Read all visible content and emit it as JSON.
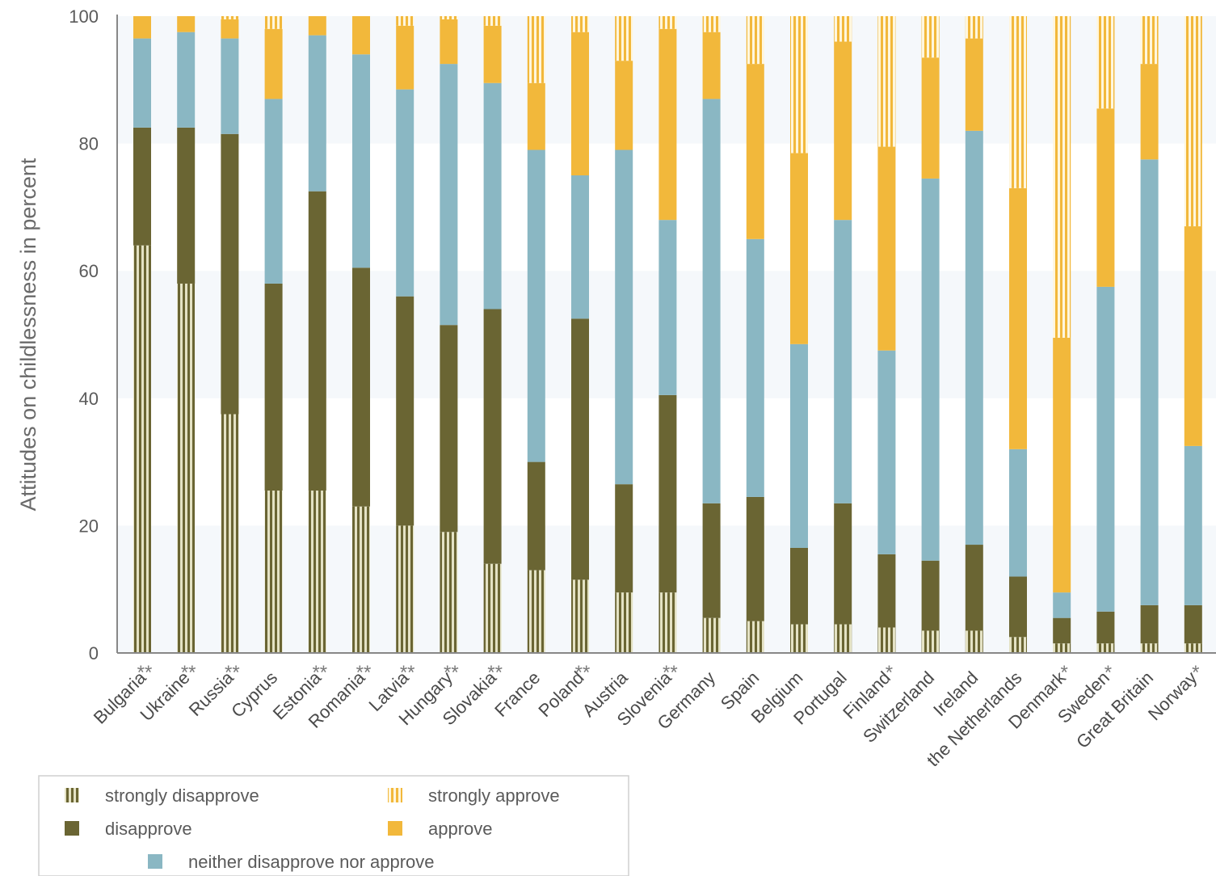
{
  "chart_data": {
    "type": "bar",
    "stacked": true,
    "ylabel": "Attitudes on childlessness in percent",
    "xlabel": "",
    "ylim": [
      0,
      100
    ],
    "yticks": [
      0,
      20,
      40,
      60,
      80,
      100
    ],
    "categories": [
      "Bulgaria",
      "Ukraine",
      "Russia",
      "Cyprus",
      "Estonia",
      "Romania",
      "Latvia",
      "Hungary",
      "Slovakia",
      "France",
      "Poland",
      "Austria",
      "Slovenia",
      "Germany",
      "Spain",
      "Belgium",
      "Portugal",
      "Finland",
      "Switzerland",
      "Ireland",
      "the Netherlands",
      "Denmark",
      "Sweden",
      "Great Britain",
      "Norway"
    ],
    "significance": [
      "**",
      "**",
      "**",
      "",
      "**",
      "**",
      "**",
      "**",
      "**",
      "",
      "**",
      "",
      "**",
      "",
      "",
      "",
      "",
      "*",
      "",
      "",
      "",
      "*",
      "*",
      "",
      "*"
    ],
    "series": [
      {
        "name": "strongly disapprove",
        "color": "#b5b48a",
        "pattern": "stripes",
        "values": [
          64,
          58,
          37.5,
          25.5,
          25.5,
          23,
          20,
          19,
          14,
          13,
          11.5,
          9.5,
          9.5,
          5.5,
          5,
          4.5,
          4.5,
          4,
          3.5,
          3.5,
          2.5,
          1.5,
          1.5,
          1.5,
          1.5
        ]
      },
      {
        "name": "disapprove",
        "color": "#6a6533",
        "pattern": "solid",
        "values": [
          18.5,
          24.5,
          44,
          32.5,
          47,
          37.5,
          36,
          32.5,
          40,
          17,
          41,
          17,
          31,
          18,
          19.5,
          12,
          19,
          11.5,
          11,
          13.5,
          9.5,
          4,
          5,
          6,
          6
        ]
      },
      {
        "name": "neither disapprove nor approve",
        "color": "#8ab7c3",
        "pattern": "solid",
        "values": [
          14,
          15,
          15,
          29,
          24.5,
          33.5,
          32.5,
          41,
          35.5,
          49,
          22.5,
          52.5,
          27.5,
          63.5,
          40.5,
          32,
          44.5,
          32,
          60,
          65,
          20,
          4,
          51,
          70,
          25
        ]
      },
      {
        "name": "approve",
        "color": "#f2b83b",
        "pattern": "solid",
        "values": [
          3.5,
          2.5,
          3,
          11,
          3,
          6,
          10,
          7,
          9,
          10.5,
          22.5,
          14,
          30,
          10.5,
          27.5,
          30,
          28,
          32,
          19,
          14.5,
          41,
          40,
          28,
          15,
          34.5
        ]
      },
      {
        "name": "strongly approve",
        "color": "#f6d27f",
        "pattern": "stripes",
        "values": [
          0,
          0,
          0.5,
          2,
          0,
          0,
          1.5,
          0.5,
          1.5,
          10.5,
          2.5,
          7,
          2,
          2.5,
          7.5,
          21.5,
          4,
          20.5,
          6.5,
          3.5,
          27,
          50.5,
          15.5,
          7.5,
          33
        ]
      }
    ],
    "legend": {
      "position": "bottom-left",
      "order": [
        "strongly disapprove",
        "strongly approve",
        "disapprove",
        "approve",
        "neither disapprove nor approve"
      ]
    },
    "band_color": "#f5f8fb",
    "axis_color": "#888888"
  }
}
